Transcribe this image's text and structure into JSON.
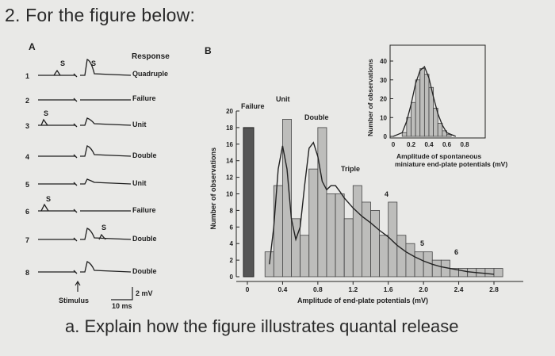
{
  "question": {
    "title": "2.  For the figure below:",
    "part_a": "a.   Explain how the figure illustrates quantal release"
  },
  "panel_a": {
    "letter": "A",
    "header": "Response",
    "traces": [
      {
        "num": "1",
        "label": "Quadruple",
        "s_marks": [
          "S",
          "S"
        ]
      },
      {
        "num": "2",
        "label": "Failure",
        "s_marks": []
      },
      {
        "num": "3",
        "label": "Unit",
        "s_marks": [
          "S"
        ]
      },
      {
        "num": "4",
        "label": "Double",
        "s_marks": []
      },
      {
        "num": "5",
        "label": "Unit",
        "s_marks": []
      },
      {
        "num": "6",
        "label": "Failure",
        "s_marks": [
          "S"
        ]
      },
      {
        "num": "7",
        "label": "Double",
        "s_marks": [
          "S"
        ]
      },
      {
        "num": "8",
        "label": "Double",
        "s_marks": []
      }
    ],
    "stimulus_label": "Stimulus",
    "scale_v": "2 mV",
    "scale_t": "10 ms"
  },
  "panel_b": {
    "letter": "B",
    "ylabel": "Number of observations",
    "xlabel": "Amplitude of end-plate potentials (mV)",
    "peak_labels": {
      "failure": "Failure",
      "unit": "Unit",
      "double": "Double",
      "triple": "Triple",
      "four": "4",
      "five": "5",
      "six": "6"
    },
    "inset_ylabel": "Number of observations",
    "inset_xlabel_1": "Amplitude of spontaneous",
    "inset_xlabel_2": "miniature end-plate potentials (mV)"
  },
  "chart_data": [
    {
      "type": "bar",
      "xlabel": "Amplitude of end-plate potentials (mV)",
      "ylabel": "Number of observations",
      "xlim": [
        0,
        2.9
      ],
      "ylim": [
        0,
        20
      ],
      "xticks": [
        "0",
        "0.4",
        "0.8",
        "1.2",
        "1.6",
        "2.0",
        "2.4",
        "2.8"
      ],
      "yticks": [
        "0",
        "2",
        "4",
        "6",
        "8",
        "10",
        "12",
        "14",
        "16",
        "18",
        "20"
      ],
      "failure_bar": {
        "x": 0,
        "value": 18
      },
      "bin_width": 0.1,
      "bins_start": [
        0.2,
        0.3,
        0.4,
        0.5,
        0.6,
        0.7,
        0.8,
        0.9,
        1.0,
        1.1,
        1.2,
        1.3,
        1.4,
        1.5,
        1.6,
        1.7,
        1.8,
        1.9,
        2.0,
        2.1,
        2.2,
        2.3,
        2.4,
        2.5,
        2.6,
        2.7,
        2.8
      ],
      "values": [
        3,
        11,
        19,
        7,
        5,
        13,
        18,
        10,
        10,
        7,
        11,
        9,
        8,
        5,
        9,
        5,
        4,
        3,
        3,
        2,
        2,
        1,
        1,
        1,
        1,
        1,
        1
      ],
      "fit_curve": {
        "x": [
          0.25,
          0.3,
          0.35,
          0.4,
          0.45,
          0.5,
          0.55,
          0.6,
          0.65,
          0.7,
          0.75,
          0.8,
          0.85,
          0.9,
          0.95,
          1.0,
          1.05,
          1.1,
          1.2,
          1.3,
          1.4,
          1.5,
          1.6,
          1.7,
          1.8,
          1.9,
          2.0,
          2.1,
          2.2,
          2.3,
          2.4,
          2.5,
          2.6,
          2.7,
          2.8
        ],
        "y": [
          1.5,
          6,
          13,
          15.8,
          13,
          7,
          4.5,
          6,
          11,
          15.5,
          16.2,
          14.5,
          11.5,
          10.5,
          11,
          11,
          10.3,
          9.5,
          8.3,
          7.3,
          6.5,
          5.6,
          4.8,
          3.8,
          3.0,
          2.4,
          1.9,
          1.5,
          1.2,
          1.0,
          0.8,
          0.6,
          0.5,
          0.4,
          0.3
        ]
      }
    },
    {
      "type": "bar",
      "xlabel": "Amplitude of spontaneous miniature end-plate potentials (mV)",
      "ylabel": "Number of observations",
      "xlim": [
        0,
        0.9
      ],
      "ylim": [
        0,
        40
      ],
      "xticks": [
        "0",
        "0.2",
        "0.4",
        "0.6",
        "0.8"
      ],
      "yticks": [
        "0",
        "10",
        "20",
        "30",
        "40"
      ],
      "bin_width": 0.05,
      "bins_start": [
        0.1,
        0.15,
        0.2,
        0.25,
        0.3,
        0.35,
        0.4,
        0.45,
        0.5,
        0.55,
        0.6
      ],
      "values": [
        2,
        10,
        18,
        30,
        36,
        33,
        26,
        15,
        7,
        3,
        1
      ],
      "fit_curve": {
        "x": [
          0.0,
          0.1,
          0.15,
          0.2,
          0.25,
          0.3,
          0.35,
          0.4,
          0.45,
          0.5,
          0.55,
          0.6,
          0.65,
          0.7
        ],
        "y": [
          0,
          2,
          8,
          17,
          28,
          35,
          37,
          31,
          21,
          12,
          6,
          2,
          1,
          0
        ]
      }
    }
  ]
}
